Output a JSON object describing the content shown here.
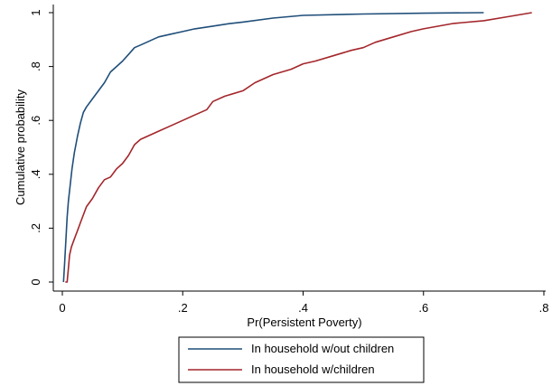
{
  "chart_data": {
    "type": "line",
    "title": "",
    "xlabel": "Pr(Persistent Poverty)",
    "ylabel": "Cumulative probability",
    "xlim": [
      0,
      0.8
    ],
    "ylim": [
      0,
      1
    ],
    "x_ticks": [
      {
        "value": 0,
        "label": "0"
      },
      {
        "value": 0.2,
        "label": ".2"
      },
      {
        "value": 0.4,
        "label": ".4"
      },
      {
        "value": 0.6,
        "label": ".6"
      },
      {
        "value": 0.8,
        "label": ".8"
      }
    ],
    "y_ticks": [
      {
        "value": 0,
        "label": "0"
      },
      {
        "value": 0.2,
        "label": ".2"
      },
      {
        "value": 0.4,
        "label": ".4"
      },
      {
        "value": 0.6,
        "label": ".6"
      },
      {
        "value": 0.8,
        "label": ".8"
      },
      {
        "value": 1,
        "label": "1"
      }
    ],
    "grid": false,
    "legend_position": "bottom",
    "series": [
      {
        "name": "In household w/out children",
        "color": "#1f4e79",
        "x": [
          0.002,
          0.004,
          0.006,
          0.008,
          0.01,
          0.013,
          0.016,
          0.02,
          0.025,
          0.03,
          0.035,
          0.04,
          0.05,
          0.06,
          0.07,
          0.08,
          0.09,
          0.1,
          0.11,
          0.12,
          0.13,
          0.14,
          0.15,
          0.16,
          0.18,
          0.2,
          0.22,
          0.25,
          0.28,
          0.3,
          0.35,
          0.4,
          0.5,
          0.6,
          0.7
        ],
        "y": [
          0.0,
          0.08,
          0.16,
          0.24,
          0.3,
          0.36,
          0.42,
          0.48,
          0.54,
          0.59,
          0.63,
          0.65,
          0.68,
          0.71,
          0.74,
          0.78,
          0.8,
          0.82,
          0.845,
          0.87,
          0.88,
          0.89,
          0.9,
          0.91,
          0.92,
          0.93,
          0.94,
          0.95,
          0.96,
          0.965,
          0.98,
          0.99,
          0.995,
          0.998,
          1.0
        ]
      },
      {
        "name": "In household w/children",
        "color": "#a3262b",
        "x": [
          0.005,
          0.008,
          0.01,
          0.012,
          0.015,
          0.02,
          0.025,
          0.03,
          0.04,
          0.05,
          0.06,
          0.07,
          0.08,
          0.09,
          0.1,
          0.11,
          0.12,
          0.13,
          0.14,
          0.16,
          0.18,
          0.2,
          0.22,
          0.24,
          0.25,
          0.27,
          0.3,
          0.32,
          0.35,
          0.38,
          0.4,
          0.42,
          0.45,
          0.48,
          0.5,
          0.52,
          0.55,
          0.58,
          0.6,
          0.65,
          0.7,
          0.74,
          0.78
        ],
        "y": [
          0.0,
          0.0,
          0.05,
          0.1,
          0.13,
          0.16,
          0.19,
          0.22,
          0.28,
          0.31,
          0.35,
          0.38,
          0.39,
          0.42,
          0.44,
          0.47,
          0.51,
          0.53,
          0.54,
          0.56,
          0.58,
          0.6,
          0.62,
          0.64,
          0.67,
          0.69,
          0.71,
          0.74,
          0.77,
          0.79,
          0.81,
          0.82,
          0.84,
          0.86,
          0.87,
          0.89,
          0.91,
          0.93,
          0.94,
          0.96,
          0.97,
          0.985,
          1.0
        ]
      }
    ]
  }
}
